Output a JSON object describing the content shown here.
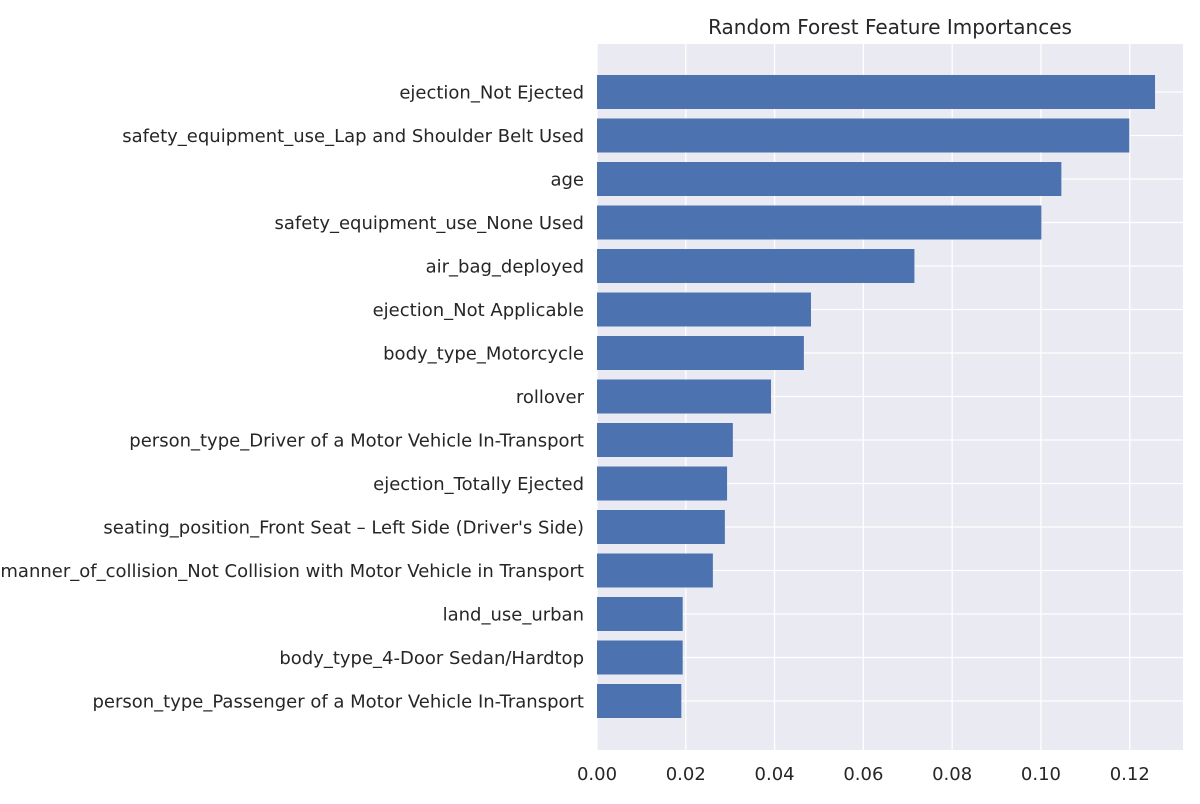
{
  "chart_data": {
    "type": "bar",
    "orientation": "horizontal",
    "title": "Random Forest Feature Importances",
    "xlabel": "",
    "ylabel": "",
    "xlim": [
      0,
      0.132
    ],
    "x_ticks": [
      "0.00",
      "0.02",
      "0.04",
      "0.06",
      "0.08",
      "0.10",
      "0.12"
    ],
    "grid": true,
    "colors": {
      "bar": "#4c72b0",
      "plot_background": "#eaeaf2",
      "grid": "#ffffff"
    },
    "categories": [
      "ejection_Not Ejected",
      "safety_equipment_use_Lap and Shoulder Belt Used",
      "age",
      "safety_equipment_use_None Used",
      "air_bag_deployed",
      "ejection_Not Applicable",
      "body_type_Motorcycle",
      "rollover",
      "person_type_Driver of a Motor Vehicle In-Transport",
      "ejection_Totally Ejected",
      "seating_position_Front Seat – Left Side (Driver's Side)",
      "manner_of_collision_Not Collision with Motor Vehicle in Transport",
      "land_use_urban",
      "body_type_4-Door Sedan/Hardtop",
      "person_type_Passenger of a Motor Vehicle In-Transport"
    ],
    "values": [
      0.1257,
      0.1199,
      0.1046,
      0.1001,
      0.0715,
      0.0482,
      0.0466,
      0.0392,
      0.0306,
      0.0293,
      0.0288,
      0.0261,
      0.0193,
      0.0193,
      0.019
    ]
  }
}
